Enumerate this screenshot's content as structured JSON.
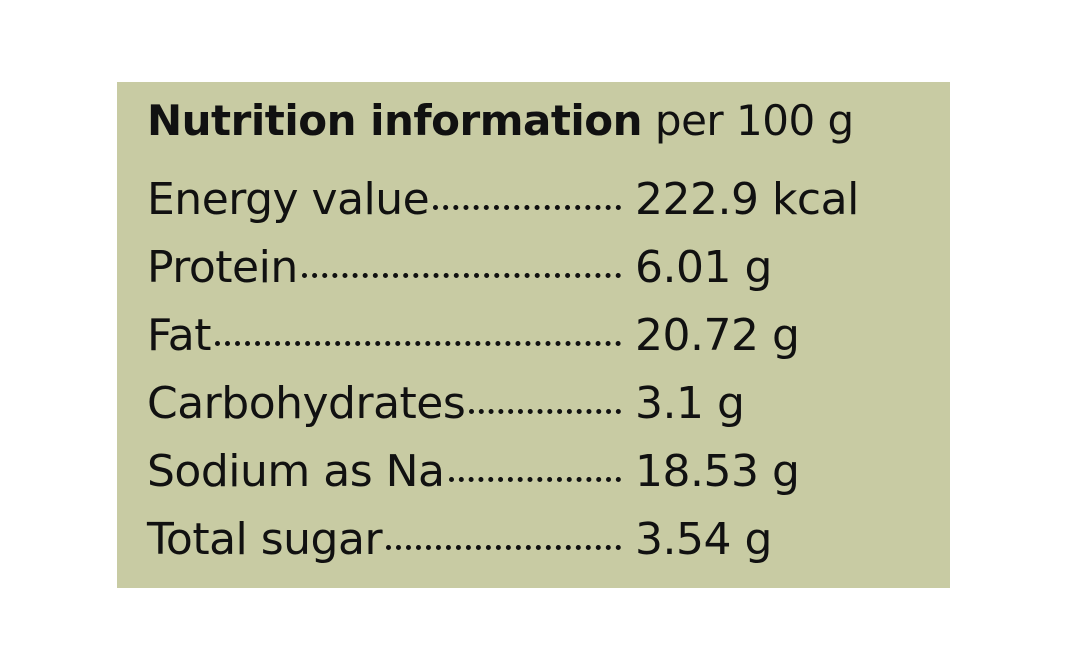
{
  "header": {
    "title_bold": "Nutrition information",
    "title_rest": "per 100 g"
  },
  "table": {
    "rows": [
      [
        "Energy value",
        "222.9 kcal"
      ],
      [
        "Protein",
        "6.01 g"
      ],
      [
        "Fat",
        "20.72 g"
      ],
      [
        "Carbohydrates",
        "3.1 g"
      ],
      [
        "Sodium as Na",
        "18.53 g"
      ],
      [
        "Total sugar",
        "3.54 g"
      ]
    ]
  }
}
